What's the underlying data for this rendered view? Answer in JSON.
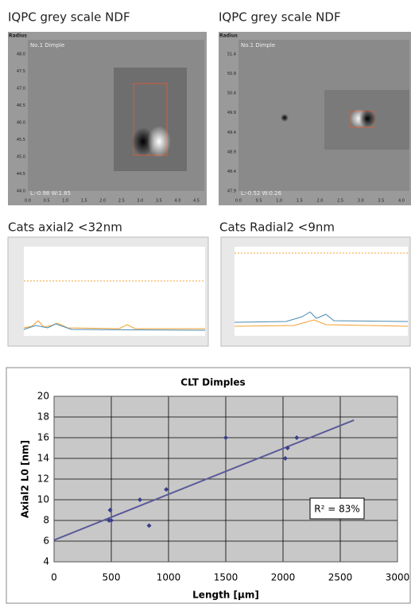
{
  "panels": [
    {
      "title": "IQPC grey scale NDF",
      "axis_label": "Radius",
      "caption": "No.1 Dimple",
      "footer": "L:-0.98  W:1.85",
      "yticks": [
        "48.0",
        "47.5",
        "47.0",
        "46.5",
        "46.0",
        "45.5",
        "45.0",
        "44.5",
        "44.0"
      ],
      "xticks": [
        "0.0",
        "0.5",
        "1.0",
        "1.5",
        "2.0",
        "2.5",
        "3.0",
        "3.5",
        "4.0",
        "4.5"
      ]
    },
    {
      "title": "IQPC grey scale NDF",
      "axis_label": "Radius",
      "caption": "No.1 Dimple",
      "footer": "L:-0.52  W:0.26",
      "yticks": [
        "51.4",
        "50.9",
        "50.4",
        "49.9",
        "49.4",
        "48.9",
        "48.4",
        "47.9"
      ],
      "xticks": [
        "0.0",
        "0.5",
        "1.0",
        "1.5",
        "2.0",
        "2.5",
        "3.0",
        "3.5",
        "4.0"
      ]
    }
  ],
  "line_panels": [
    {
      "title": "Cats axial2 <32nm"
    },
    {
      "title": "Cats Radial2 <9nm"
    }
  ],
  "chart_data": {
    "type": "scatter",
    "title": "CLT Dimples",
    "x_label": "Length [µm]",
    "y_label": "Axial2 L0 [nm]",
    "x": [
      480,
      490,
      500,
      750,
      830,
      980,
      1500,
      2020,
      2040,
      2120
    ],
    "y": [
      8,
      9,
      8,
      10,
      7.5,
      11,
      16,
      14,
      15,
      16
    ],
    "color": "#3b3f8c",
    "xlim": [
      0,
      3000
    ],
    "ylim": [
      4,
      20
    ],
    "xticks": [
      0,
      500,
      1000,
      1500,
      2000,
      2500,
      3000
    ],
    "yticks": [
      4,
      6,
      8,
      10,
      12,
      14,
      16,
      18,
      20
    ],
    "grid": true,
    "trendline": {
      "x": [
        0,
        2620
      ],
      "y": [
        6.1,
        17.7
      ],
      "color": "#5a5a9a"
    },
    "annotation": "R² = 83%"
  }
}
